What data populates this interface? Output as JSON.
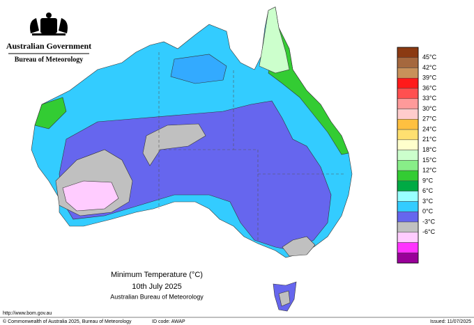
{
  "header": {
    "government": "Australian Government",
    "bureau": "Bureau of Meteorology"
  },
  "legend": {
    "colors": [
      "#8b3a12",
      "#a5683e",
      "#c8915a",
      "#ff1a1a",
      "#ff5050",
      "#ff9a9a",
      "#ffcccc",
      "#ffc040",
      "#ffe070",
      "#ffffcc",
      "#ccffcc",
      "#88ee88",
      "#33cc33",
      "#00aa44",
      "#99ffff",
      "#33ccff",
      "#6666ee",
      "#c0c0c0",
      "#ffccff",
      "#ff33ff",
      "#990099"
    ],
    "labels": [
      "45°C",
      "42°C",
      "39°C",
      "36°C",
      "33°C",
      "30°C",
      "27°C",
      "24°C",
      "21°C",
      "18°C",
      "15°C",
      "12°C",
      "9°C",
      "6°C",
      "3°C",
      "0°C",
      "-3°C",
      "-6°C"
    ]
  },
  "caption": {
    "title": "Minimum Temperature (°C)",
    "date": "10th July 2025",
    "source": "Australian Bureau of Meteorology"
  },
  "footer": {
    "url": "http://www.bom.gov.au",
    "copyright": "© Commonwealth of Australia 2025, Bureau of Meteorology",
    "id_code": "ID code: AWAP",
    "issued": "Issued: 11/07/2025"
  }
}
